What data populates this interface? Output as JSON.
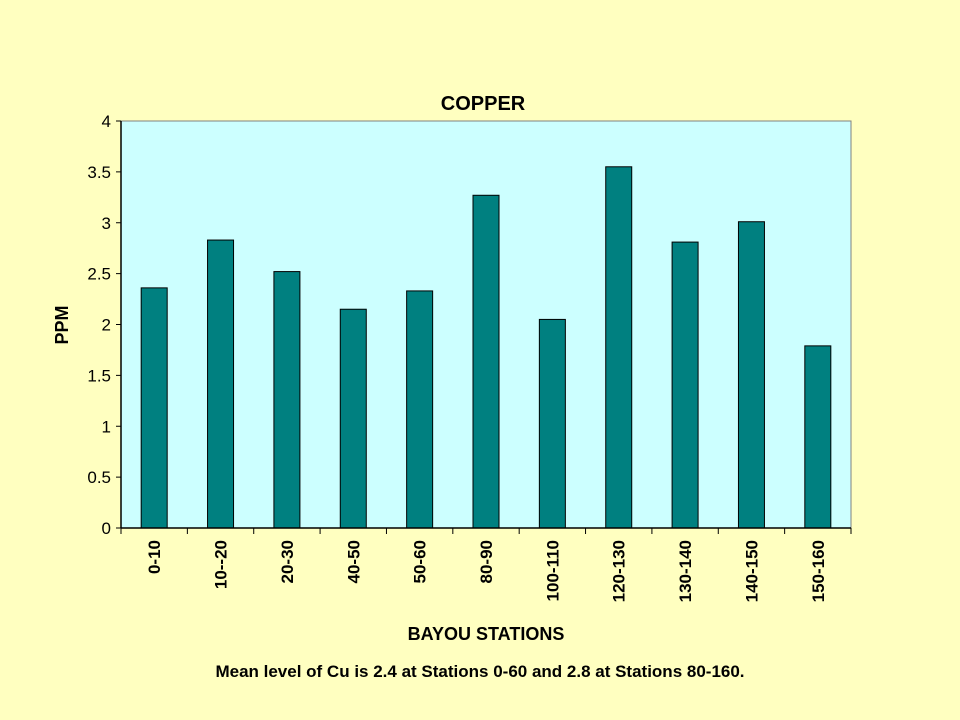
{
  "colors": {
    "page_background": "#ffffc0",
    "plot_background": "#ccffff",
    "bar_fill": "#008080",
    "bar_stroke": "#000000"
  },
  "caption": "Mean level of Cu is 2.4 at Stations 0-60 and 2.8 at Stations 80-160.",
  "chart_data": {
    "type": "bar",
    "title": "COPPER",
    "xlabel": "BAYOU STATIONS",
    "ylabel": "PPM",
    "categories": [
      "0-10",
      "10--20",
      "20-30",
      "40-50",
      "50-60",
      "80-90",
      "100-110",
      "120-130",
      "130-140",
      "140-150",
      "150-160"
    ],
    "values": [
      2.36,
      2.83,
      2.52,
      2.15,
      2.33,
      3.27,
      2.05,
      3.55,
      2.81,
      3.01,
      1.79
    ],
    "ylim": [
      0,
      4
    ],
    "yticks": [
      "0",
      "0.5",
      "1",
      "1.5",
      "2",
      "2.5",
      "3",
      "3.5",
      "4"
    ],
    "grid": false,
    "legend": "none"
  }
}
